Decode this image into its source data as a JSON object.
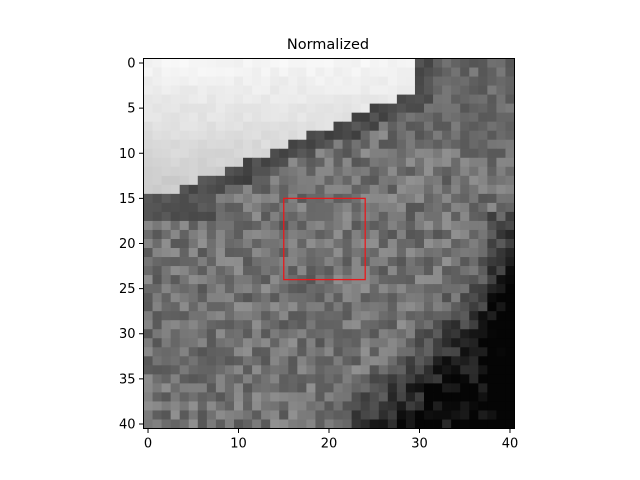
{
  "chart_data": {
    "type": "heatmap",
    "title": "Normalized",
    "xlabel": "",
    "ylabel": "",
    "colormap": "gray",
    "grid": false,
    "image_size": [
      41,
      41
    ],
    "xlim": [
      -0.5,
      40.5
    ],
    "ylim": [
      40.5,
      -0.5
    ],
    "x_ticks": [
      0,
      10,
      20,
      30,
      40
    ],
    "x_tick_labels": [
      "0",
      "10",
      "20",
      "30",
      "40"
    ],
    "y_ticks": [
      0,
      5,
      10,
      15,
      20,
      25,
      30,
      35,
      40
    ],
    "y_tick_labels": [
      "0",
      "5",
      "10",
      "15",
      "20",
      "25",
      "30",
      "35",
      "40"
    ],
    "annotations": [
      {
        "type": "rectangle",
        "x_range": [
          15,
          24
        ],
        "y_range": [
          15,
          24
        ],
        "color": "#e8191c"
      }
    ]
  }
}
